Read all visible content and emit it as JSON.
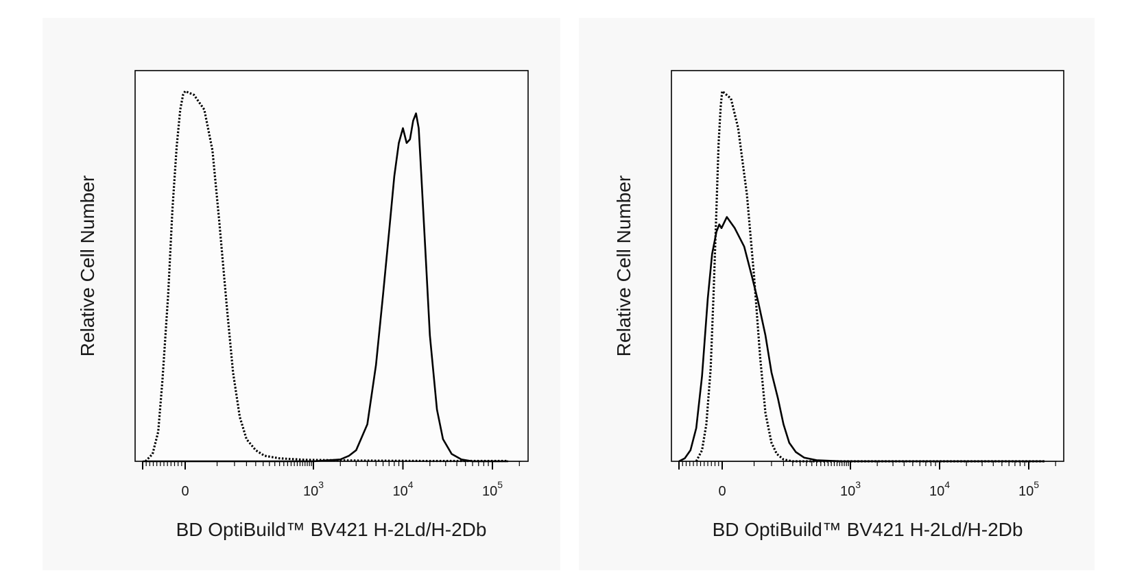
{
  "chart_data": [
    {
      "type": "line",
      "panel": "left",
      "xlabel": "BD OptiBuild™ BV421 H-2Ld/H-2Db",
      "ylabel": "Relative Cell Number",
      "xscale": "biexponential",
      "xlim": [
        -300,
        200000
      ],
      "ylim": [
        0,
        100
      ],
      "grid": false,
      "x_tick_labels": [
        {
          "x": 0,
          "text": "0"
        },
        {
          "x": 1000,
          "base": "10",
          "exp": "3"
        },
        {
          "x": 10000,
          "base": "10",
          "exp": "4"
        },
        {
          "x": 100000,
          "base": "10",
          "exp": "5"
        }
      ],
      "series": [
        {
          "style": "dotted",
          "x": [
            -280,
            -230,
            -190,
            -160,
            -120,
            -90,
            -60,
            -35,
            -15,
            0,
            10,
            25,
            40,
            55,
            75,
            95,
            120,
            150,
            200,
            260,
            400,
            800,
            3000,
            20000,
            150000
          ],
          "y": [
            0,
            2,
            8,
            22,
            45,
            68,
            85,
            95,
            99,
            100,
            99,
            95,
            84,
            65,
            42,
            24,
            12,
            6,
            3,
            1.5,
            0.8,
            0.4,
            0.2,
            0.1,
            0.1
          ]
        },
        {
          "style": "solid",
          "x": [
            -300,
            1000,
            2000,
            2500,
            3000,
            4000,
            5000,
            6000,
            7000,
            8000,
            9000,
            10000,
            11000,
            12000,
            13000,
            14000,
            15000,
            16000,
            18000,
            20000,
            24000,
            28000,
            35000,
            45000,
            60000,
            150000
          ],
          "y": [
            0,
            0,
            0.5,
            1.5,
            3,
            10,
            26,
            45,
            62,
            77,
            86,
            90,
            86,
            87,
            92,
            94,
            90,
            78,
            55,
            34,
            14,
            6,
            2,
            0.5,
            0,
            0
          ]
        }
      ]
    },
    {
      "type": "line",
      "panel": "right",
      "xlabel": "BD OptiBuild™ BV421 H-2Ld/H-2Db",
      "ylabel": "Relative Cell Number",
      "xscale": "biexponential",
      "xlim": [
        -300,
        200000
      ],
      "ylim": [
        0,
        100
      ],
      "grid": false,
      "x_tick_labels": [
        {
          "x": 0,
          "text": "0"
        },
        {
          "x": 1000,
          "base": "10",
          "exp": "3"
        },
        {
          "x": 10000,
          "base": "10",
          "exp": "4"
        },
        {
          "x": 100000,
          "base": "10",
          "exp": "5"
        }
      ],
      "series": [
        {
          "style": "dotted",
          "x": [
            -180,
            -140,
            -110,
            -80,
            -60,
            -40,
            -25,
            -10,
            0,
            10,
            20,
            35,
            50,
            65,
            80,
            100,
            120,
            150,
            200,
            400,
            5000,
            150000
          ],
          "y": [
            0,
            3,
            10,
            25,
            45,
            68,
            86,
            96,
            100,
            98,
            90,
            72,
            50,
            28,
            13,
            5,
            2,
            0.5,
            0,
            0,
            0,
            0
          ]
        },
        {
          "style": "solid",
          "x": [
            -300,
            -260,
            -220,
            -180,
            -140,
            -100,
            -70,
            -40,
            -20,
            -5,
            5,
            15,
            30,
            45,
            60,
            80,
            100,
            125,
            150,
            180,
            220,
            280,
            400,
            800,
            5000,
            150000
          ],
          "y": [
            0,
            0.8,
            3,
            9,
            23,
            44,
            56,
            62,
            64,
            63,
            66,
            63,
            58,
            50,
            43,
            34,
            24,
            17,
            10,
            5,
            2.5,
            1,
            0.3,
            0,
            0,
            0
          ]
        }
      ]
    }
  ]
}
